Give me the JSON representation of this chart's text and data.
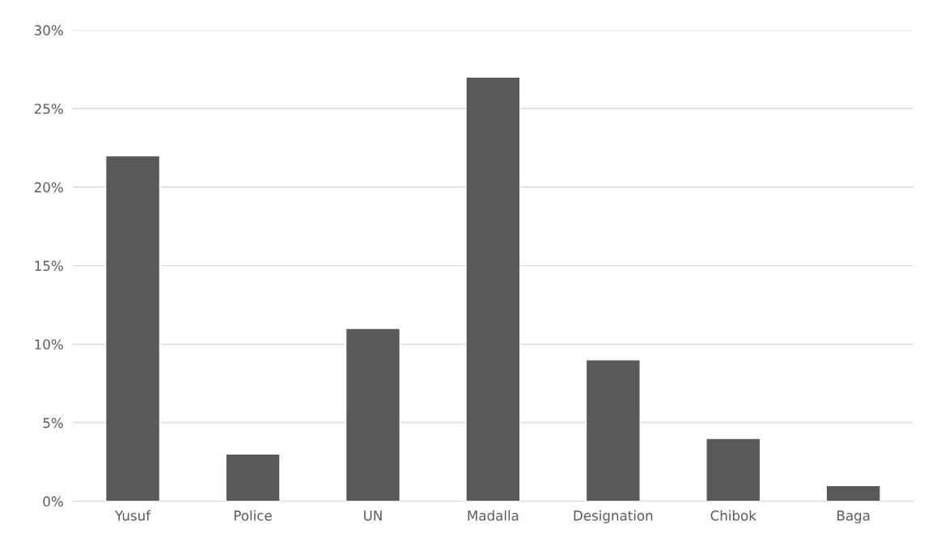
{
  "chart_data": {
    "type": "bar",
    "categories": [
      "Yusuf",
      "Police",
      "UN",
      "Madalla",
      "Designation",
      "Chibok",
      "Baga"
    ],
    "values": [
      22,
      3,
      11,
      27,
      9,
      4,
      1
    ],
    "color": "#595959",
    "ylim": [
      0,
      30
    ],
    "yticks": [
      {
        "value": 0,
        "label": "0%"
      },
      {
        "value": 5,
        "label": "5%"
      },
      {
        "value": 10,
        "label": "10%"
      },
      {
        "value": 15,
        "label": "15%"
      },
      {
        "value": 20,
        "label": "20%"
      },
      {
        "value": 25,
        "label": "25%"
      },
      {
        "value": 30,
        "label": "30%"
      }
    ],
    "grid": "y"
  }
}
